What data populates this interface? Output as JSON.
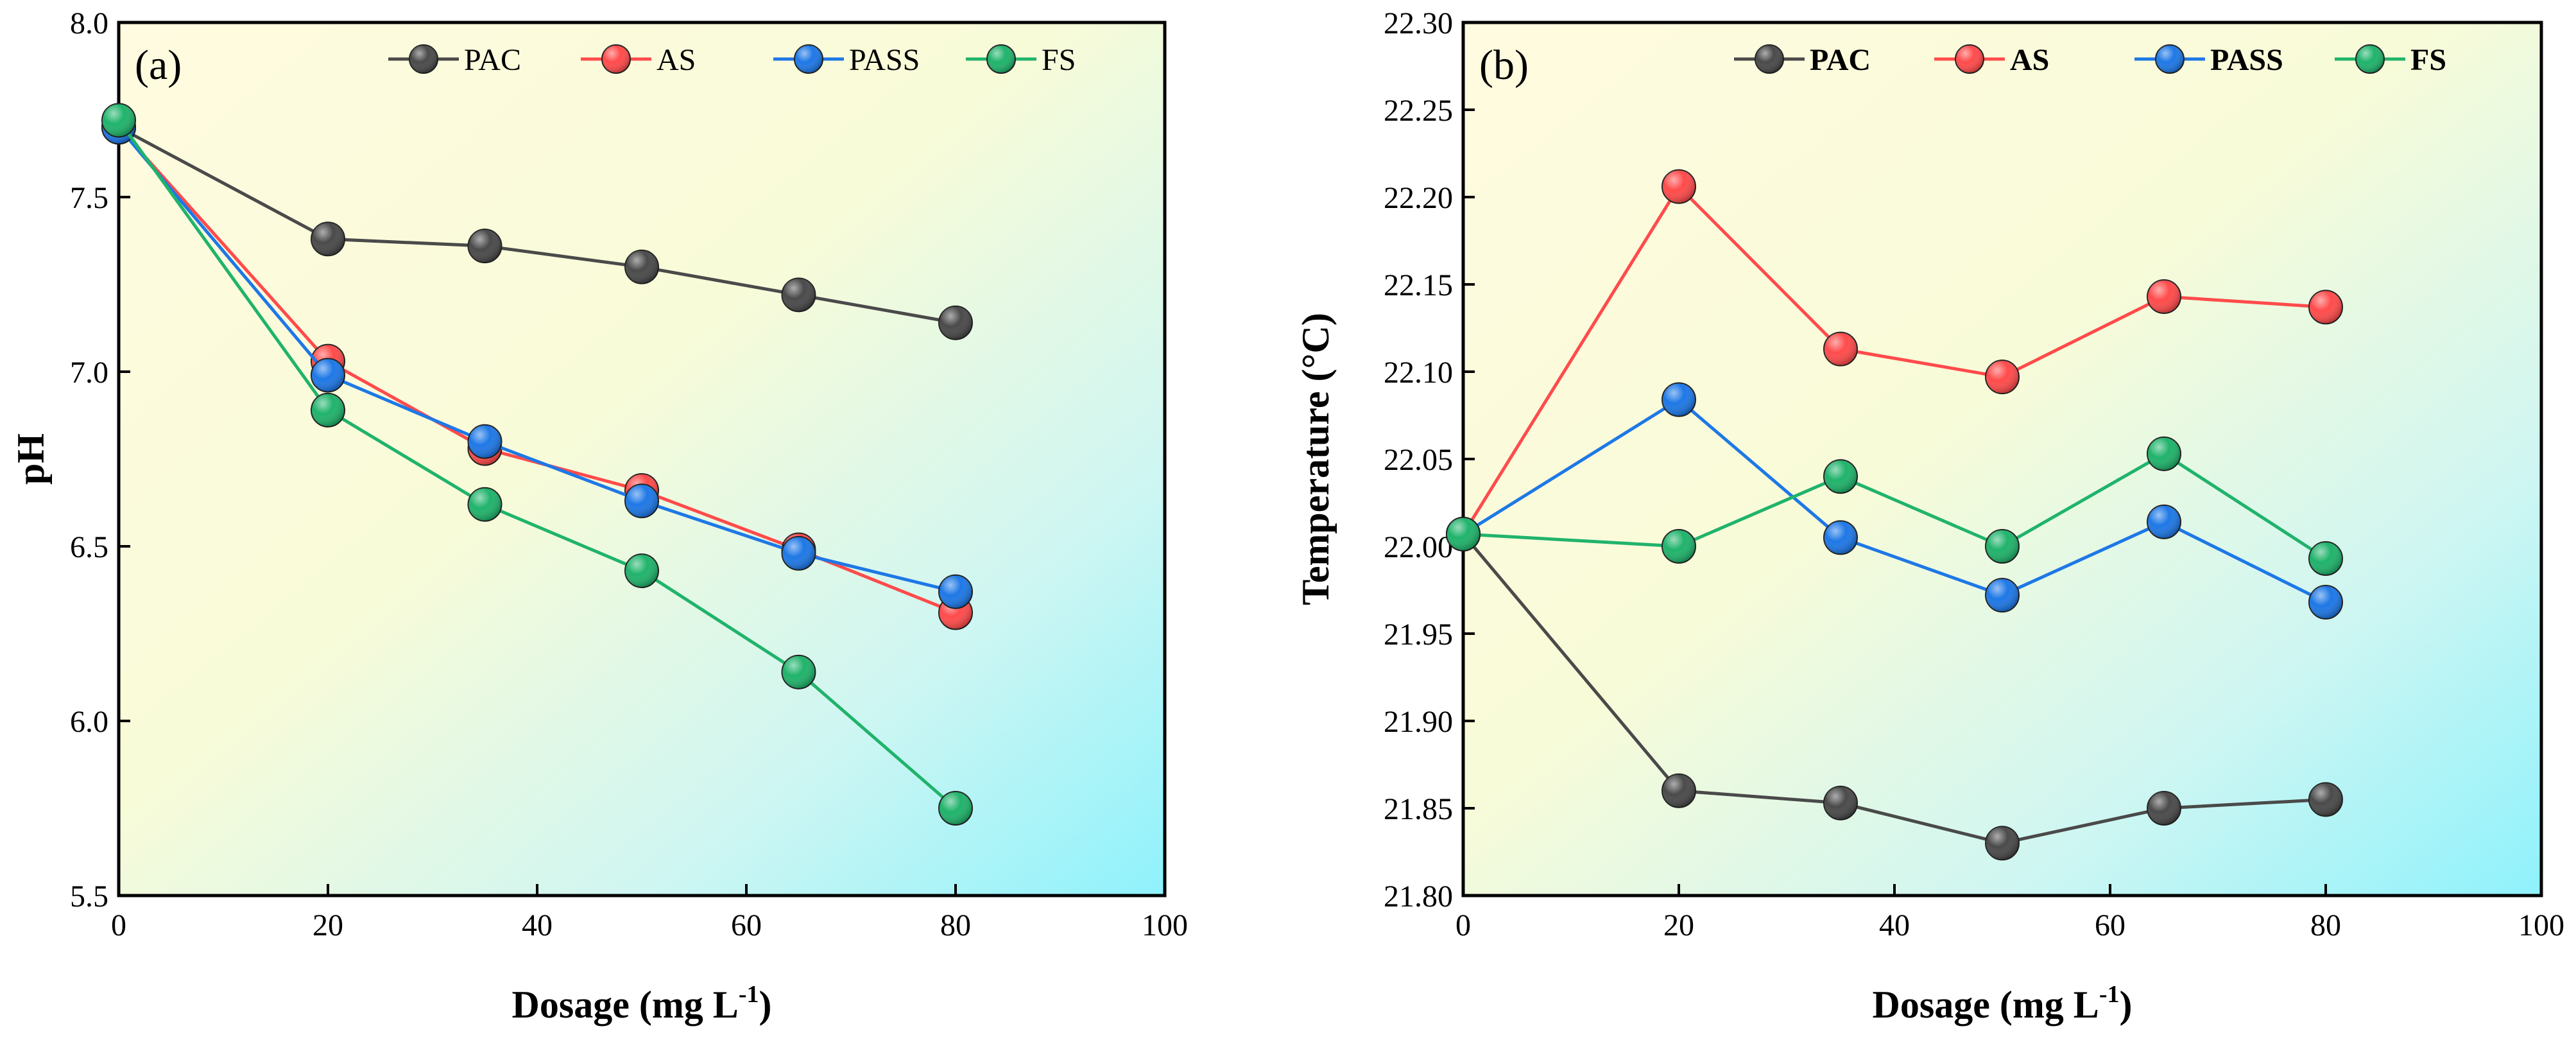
{
  "chart_data": [
    {
      "type": "line",
      "panel_label": "(a)",
      "xlabel": "Dosage (mg L",
      "xlabel_sup": "-1",
      "xlabel_close": ")",
      "ylabel": "pH",
      "xlim": [
        0,
        100
      ],
      "ylim": [
        5.5,
        8.0
      ],
      "xticks": [
        "0",
        "20",
        "40",
        "60",
        "80",
        "100"
      ],
      "yticks": [
        "5.5",
        "6.0",
        "6.5",
        "7.0",
        "7.5",
        "8.0"
      ],
      "x": [
        0,
        20,
        35,
        50,
        65,
        80
      ],
      "legend_position": "top-right",
      "background": "gradient-yellow-to-cyan",
      "series": [
        {
          "name": "PAC",
          "color": "#4a4a4a",
          "values": [
            7.7,
            7.38,
            7.36,
            7.3,
            7.22,
            7.14
          ]
        },
        {
          "name": "AS",
          "color": "#ff4b4b",
          "values": [
            7.7,
            7.03,
            6.78,
            6.66,
            6.49,
            6.31
          ]
        },
        {
          "name": "PASS",
          "color": "#1e78e6",
          "values": [
            7.7,
            6.99,
            6.8,
            6.63,
            6.48,
            6.37
          ]
        },
        {
          "name": "FS",
          "color": "#20b36b",
          "values": [
            7.72,
            6.89,
            6.62,
            6.43,
            6.14,
            5.75
          ]
        }
      ]
    },
    {
      "type": "line",
      "panel_label": "(b)",
      "xlabel": "Dosage (mg L",
      "xlabel_sup": "-1",
      "xlabel_close": ")",
      "ylabel": "Temperature (°C)",
      "xlim": [
        0,
        100
      ],
      "ylim": [
        21.8,
        22.3
      ],
      "xticks": [
        "0",
        "20",
        "40",
        "60",
        "80",
        "100"
      ],
      "yticks": [
        "21.80",
        "21.85",
        "21.90",
        "21.95",
        "22.00",
        "22.05",
        "22.10",
        "22.15",
        "22.20",
        "22.25",
        "22.30"
      ],
      "x": [
        0,
        20,
        35,
        50,
        65,
        80
      ],
      "legend_position": "top-right",
      "background": "gradient-yellow-to-cyan",
      "series": [
        {
          "name": "PAC",
          "color": "#4a4a4a",
          "values": [
            22.007,
            21.86,
            21.853,
            21.83,
            21.85,
            21.855
          ]
        },
        {
          "name": "AS",
          "color": "#ff4b4b",
          "values": [
            22.007,
            22.206,
            22.113,
            22.097,
            22.143,
            22.137
          ]
        },
        {
          "name": "PASS",
          "color": "#1e78e6",
          "values": [
            22.007,
            22.084,
            22.005,
            21.972,
            22.014,
            21.968
          ]
        },
        {
          "name": "FS",
          "color": "#20b36b",
          "values": [
            22.007,
            22.0,
            22.04,
            22.0,
            22.053,
            21.993
          ]
        }
      ]
    }
  ]
}
